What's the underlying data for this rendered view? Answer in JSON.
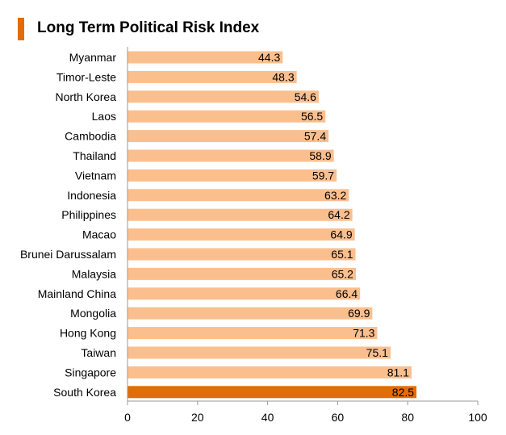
{
  "chart_data": {
    "type": "bar",
    "orientation": "horizontal",
    "title": "Long Term Political Risk Index",
    "xlabel": "",
    "ylabel": "",
    "xlim": [
      0,
      100
    ],
    "x_ticks": [
      0,
      20,
      40,
      60,
      80,
      100
    ],
    "grid": false,
    "categories": [
      "Myanmar",
      "Timor-Leste",
      "North Korea",
      "Laos",
      "Cambodia",
      "Thailand",
      "Vietnam",
      "Indonesia",
      "Philippines",
      "Macao",
      "Brunei Darussalam",
      "Malaysia",
      "Mainland China",
      "Mongolia",
      "Hong Kong",
      "Taiwan",
      "Singapore",
      "South Korea"
    ],
    "values": [
      44.3,
      48.3,
      54.6,
      56.5,
      57.4,
      58.9,
      59.7,
      63.2,
      64.2,
      64.9,
      65.1,
      65.2,
      66.4,
      69.9,
      71.3,
      75.1,
      81.1,
      82.5
    ],
    "value_labels": [
      "44.3",
      "48.3",
      "54.6",
      "56.5",
      "57.4",
      "58.9",
      "59.7",
      "63.2",
      "64.2",
      "64.9",
      "65.1",
      "65.2",
      "66.4",
      "69.9",
      "71.3",
      "75.1",
      "81.1",
      "82.5"
    ],
    "highlight": "South Korea"
  },
  "colors": {
    "bar": "#fbbf8e",
    "highlight": "#e36c0a",
    "accent": "#e36c0a",
    "axis": "#999999"
  }
}
